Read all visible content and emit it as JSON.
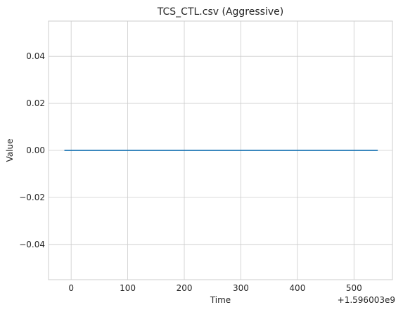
{
  "chart_data": {
    "type": "line",
    "title": "TCS_CTL.csv (Aggressive)",
    "xlabel": "Time",
    "ylabel": "Value",
    "x_offset_label": "+1.596003e9",
    "xlim": [
      -40,
      568
    ],
    "ylim": [
      -0.055,
      0.055
    ],
    "x_ticks": [
      0,
      100,
      200,
      300,
      400,
      500
    ],
    "y_ticks": [
      -0.04,
      -0.02,
      0.0,
      0.02,
      0.04
    ],
    "y_tick_labels": [
      "−0.04",
      "−0.02",
      "0.00",
      "0.02",
      "0.04"
    ],
    "grid": true,
    "series": [
      {
        "color": "#1f77b4",
        "x": [
          -12,
          542
        ],
        "y": [
          0,
          0
        ]
      }
    ]
  }
}
